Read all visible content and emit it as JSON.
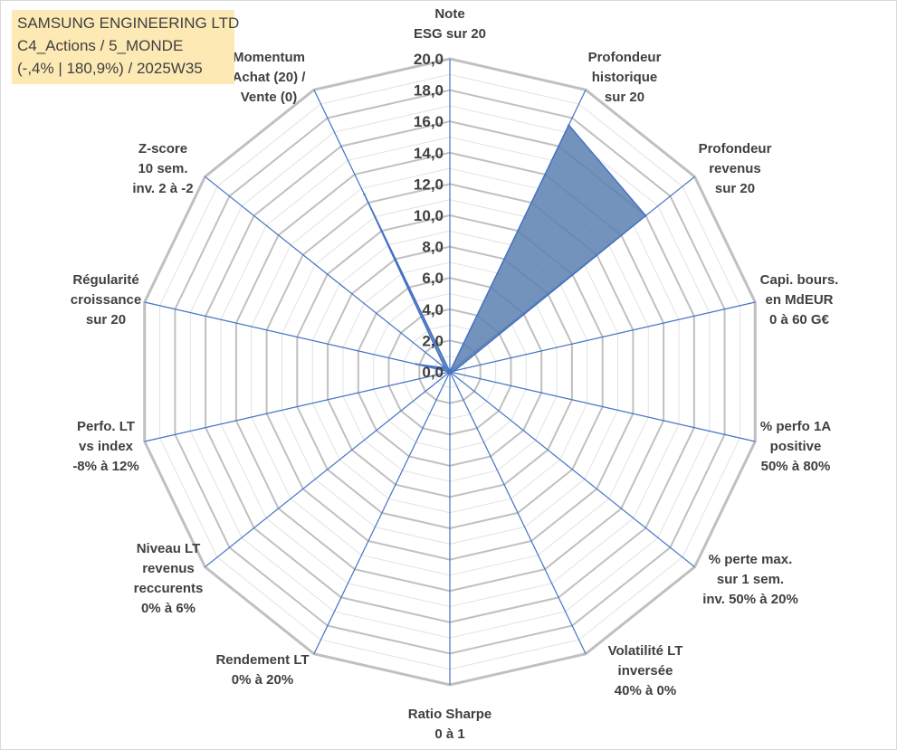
{
  "info_box": {
    "lines": [
      "SAMSUNG ENGINEERING LTD",
      "C4_Actions / 5_MONDE",
      "(-,4% | 180,9%) / 2025W35"
    ]
  },
  "colors": {
    "grid": "#c0c0c0",
    "spoke": "#4472c4",
    "series_fill": "#5b80b0",
    "series_stroke": "#4472c4",
    "text": "#404040",
    "info_bg": "#fde9b4"
  },
  "chart_data": {
    "type": "radar",
    "title": "",
    "r_range": [
      0,
      20
    ],
    "r_major": 2,
    "r_minor": 1,
    "grid": true,
    "legend": "none",
    "r_tick_labels": [
      "0,0",
      "2,0",
      "4,0",
      "6,0",
      "8,0",
      "10,0",
      "12,0",
      "14,0",
      "16,0",
      "18,0",
      "20,0"
    ],
    "axes": [
      {
        "lines": [
          "Note",
          "ESG sur 20"
        ]
      },
      {
        "lines": [
          "Profondeur",
          "historique",
          "sur 20"
        ]
      },
      {
        "lines": [
          "Profondeur",
          "revenus",
          "sur 20"
        ]
      },
      {
        "lines": [
          "Capi. bours.",
          "en MdEUR",
          "0 à 60 G€"
        ]
      },
      {
        "lines": [
          "% perfo 1A",
          "positive",
          "50% à 80%"
        ]
      },
      {
        "lines": [
          "% perte max.",
          "sur 1 sem.",
          "inv. 50% à 20%"
        ]
      },
      {
        "lines": [
          "Volatilité LT",
          "inversée",
          "40% à 0%"
        ]
      },
      {
        "lines": [
          "Ratio Sharpe",
          "0 à 1"
        ]
      },
      {
        "lines": [
          "Rendement LT",
          "0% à 20%"
        ]
      },
      {
        "lines": [
          "Niveau LT",
          "revenus",
          "reccurents",
          "0% à 6%"
        ]
      },
      {
        "lines": [
          "Perfo. LT",
          "vs index",
          "-8% à 12%"
        ]
      },
      {
        "lines": [
          "Régularité",
          "croissance",
          "sur 20"
        ]
      },
      {
        "lines": [
          "Z-score",
          "10 sem.",
          "inv. 2 à -2"
        ]
      },
      {
        "lines": [
          "Momentum",
          "Achat (20) /",
          "Vente (0)"
        ]
      }
    ],
    "series": [
      {
        "values": [
          0,
          17.5,
          16.0,
          0.3,
          0,
          0,
          0,
          0,
          0,
          0,
          0,
          2.2,
          0.4,
          12.6
        ]
      }
    ]
  }
}
